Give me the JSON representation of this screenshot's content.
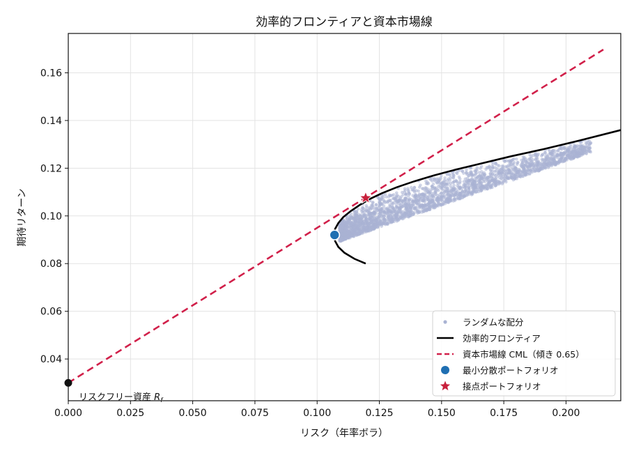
{
  "chart_data": {
    "type": "scatter",
    "title": "効率的フロンティアと資本市場線",
    "xlabel": "リスク（年率ボラ）",
    "ylabel": "期待リターン",
    "xlim": [
      0.0,
      0.222
    ],
    "ylim": [
      0.0225,
      0.1765
    ],
    "x_ticks": [
      0.0,
      0.025,
      0.05,
      0.075,
      0.1,
      0.125,
      0.15,
      0.175,
      0.2
    ],
    "x_tick_labels": [
      "0.000",
      "0.025",
      "0.050",
      "0.075",
      "0.100",
      "0.125",
      "0.150",
      "0.175",
      "0.200"
    ],
    "y_ticks": [
      0.04,
      0.06,
      0.08,
      0.1,
      0.12,
      0.14,
      0.16
    ],
    "y_tick_labels": [
      "0.04",
      "0.06",
      "0.08",
      "0.10",
      "0.12",
      "0.14",
      "0.16"
    ],
    "grid": true,
    "legend_position": "lower-right",
    "legend": [
      {
        "key": "random",
        "label": "ランダムな配分"
      },
      {
        "key": "frontier",
        "label": "効率的フロンティア"
      },
      {
        "key": "cml",
        "label": "資本市場線 CML（傾き 0.65）"
      },
      {
        "key": "minvar",
        "label": "最小分散ポートフォリオ"
      },
      {
        "key": "tangency",
        "label": "接点ポートフォリオ"
      }
    ],
    "colors": {
      "random": "#a9b3d3",
      "frontier": "#000000",
      "cml": "#d1204a",
      "minvar": "#1f6fb2",
      "tangency": "#c8213c",
      "rf_point": "#111111"
    },
    "random_portfolios": {
      "description_of_shape": "dense cloud below frontier",
      "risk_range": [
        0.107,
        0.21
      ],
      "return_range": [
        0.086,
        0.138
      ]
    },
    "efficient_frontier": {
      "points": [
        [
          0.1195,
          0.08
        ],
        [
          0.115,
          0.082
        ],
        [
          0.111,
          0.0845
        ],
        [
          0.1085,
          0.087
        ],
        [
          0.1072,
          0.0895
        ],
        [
          0.1068,
          0.092
        ],
        [
          0.1072,
          0.0945
        ],
        [
          0.1085,
          0.097
        ],
        [
          0.1105,
          0.0995
        ],
        [
          0.1135,
          0.102
        ],
        [
          0.117,
          0.1045
        ],
        [
          0.121,
          0.107
        ],
        [
          0.126,
          0.1095
        ],
        [
          0.132,
          0.112
        ],
        [
          0.139,
          0.1145
        ],
        [
          0.147,
          0.117
        ],
        [
          0.156,
          0.1195
        ],
        [
          0.166,
          0.122
        ],
        [
          0.178,
          0.125
        ],
        [
          0.191,
          0.128
        ],
        [
          0.205,
          0.1315
        ],
        [
          0.222,
          0.136
        ]
      ]
    },
    "cml": {
      "slope": 0.65,
      "intercept": 0.03,
      "x_range": [
        0.0,
        0.215
      ]
    },
    "min_variance_portfolio": {
      "risk": 0.107,
      "return": 0.092
    },
    "tangency_portfolio": {
      "risk": 0.1195,
      "return": 0.1075
    },
    "risk_free": {
      "risk": 0.0,
      "return": 0.03,
      "label": "リスクフリー資産 ",
      "label_math": "R",
      "label_sub": "f"
    }
  }
}
